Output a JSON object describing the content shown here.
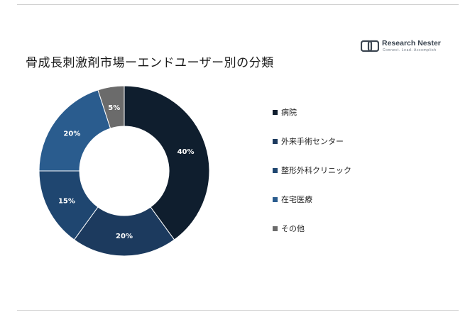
{
  "logo": {
    "name": "Research Nester",
    "tagline": "Connect. Lead. Accomplish"
  },
  "chart_data": {
    "type": "donut",
    "title": "骨成長刺激剤市場ーエンドユーザー別の分類",
    "unit": "%",
    "categories": [
      "病院",
      "外来手術センター",
      "整形外科クリニック",
      "在宅医療",
      "その他"
    ],
    "values": [
      40,
      20,
      15,
      20,
      5
    ],
    "data_labels": [
      "40%",
      "20%",
      "15%",
      "20%",
      "5%"
    ],
    "colors": [
      "#0f1e2e",
      "#1c3a5e",
      "#1f4670",
      "#2a5c8e",
      "#6b6b6b"
    ],
    "legend_position": "right"
  }
}
